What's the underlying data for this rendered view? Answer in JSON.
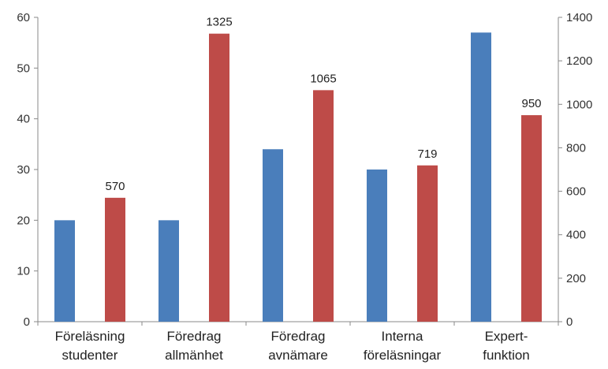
{
  "chart_data": {
    "type": "bar",
    "categories": [
      [
        "Föreläsning",
        "studenter"
      ],
      [
        "Föredrag",
        "allmänhet"
      ],
      [
        "Föredrag",
        "avnämare"
      ],
      [
        "Interna",
        "föreläsningar"
      ],
      [
        "Expert-",
        "funktion"
      ]
    ],
    "series": [
      {
        "axis": "left",
        "color": "#4a7ebb",
        "values": [
          20,
          20,
          34,
          30,
          57
        ]
      },
      {
        "axis": "right",
        "color": "#be4b48",
        "values": [
          570,
          1325,
          1065,
          719,
          950
        ],
        "data_labels": [
          "570",
          "1325",
          "1065",
          "719",
          "950"
        ]
      }
    ],
    "y_left": {
      "min": 0,
      "max": 60,
      "ticks": [
        0,
        10,
        20,
        30,
        40,
        50,
        60
      ]
    },
    "y_right": {
      "min": 0,
      "max": 1400,
      "ticks": [
        0,
        200,
        400,
        600,
        800,
        1000,
        1200,
        1400
      ]
    },
    "grid": false,
    "legend": "none",
    "title": "",
    "xlabel": "",
    "ylabel": ""
  }
}
